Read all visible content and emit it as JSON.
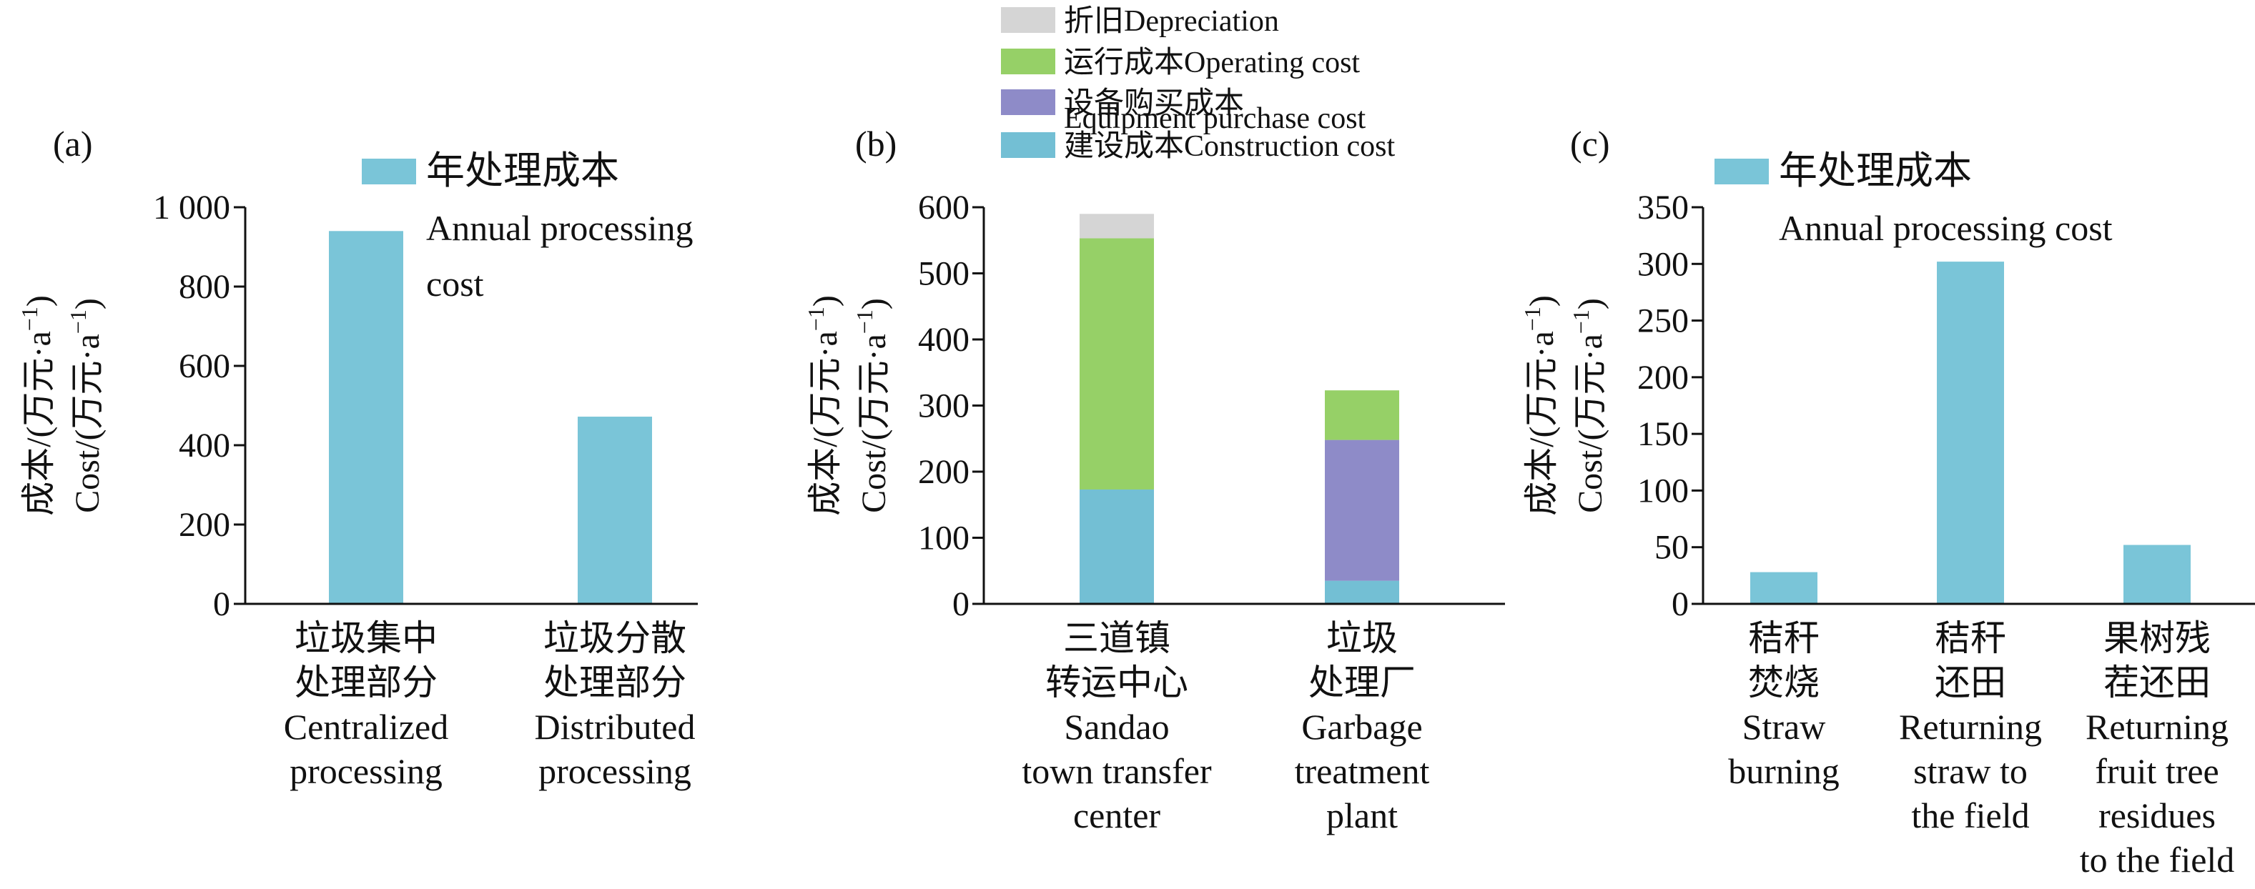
{
  "chart_data": [
    {
      "panel": "(a)",
      "type": "bar",
      "ylabel_cn": "成本/(万元·a",
      "ylabel_en": "Cost/(万元·a",
      "ylabel_sup": "−1",
      "ylabel_close": ")",
      "ylim": [
        0,
        1000
      ],
      "yticks": [
        0,
        200,
        400,
        600,
        800,
        1000
      ],
      "ytick_labels": [
        "0",
        "200",
        "400",
        "600",
        "800",
        "1 000"
      ],
      "categories": [
        [
          "垃圾集中",
          "处理部分",
          "Centralized",
          "processing"
        ],
        [
          "垃圾分散",
          "处理部分",
          "Distributed",
          "processing"
        ]
      ],
      "legend": [
        {
          "lines": [
            "年处理成本",
            "Annual processing",
            "cost"
          ],
          "color": "#7ac5d8"
        }
      ],
      "series": [
        {
          "name": "年处理成本 Annual processing cost",
          "values": [
            940,
            472
          ],
          "color": "#7ac5d8"
        }
      ]
    },
    {
      "panel": "(b)",
      "type": "bar",
      "stacked": true,
      "ylabel_cn": "成本/(万元·a",
      "ylabel_en": "Cost/(万元·a",
      "ylabel_sup": "−1",
      "ylabel_close": ")",
      "ylim": [
        0,
        600
      ],
      "yticks": [
        0,
        100,
        200,
        300,
        400,
        500,
        600
      ],
      "ytick_labels": [
        "0",
        "100",
        "200",
        "300",
        "400",
        "500",
        "600"
      ],
      "categories": [
        [
          "三道镇",
          "转运中心",
          "Sandao",
          "town transfer",
          "center"
        ],
        [
          "垃圾",
          "处理厂",
          "Garbage",
          "treatment",
          "plant"
        ]
      ],
      "legend": [
        {
          "lines": [
            "折旧Depreciation"
          ],
          "color": "#d5d5d5"
        },
        {
          "lines": [
            "运行成本Operating cost"
          ],
          "color": "#96d067"
        },
        {
          "lines": [
            "设备购买成本",
            "Equipment purchase cost"
          ],
          "color": "#8e8bc8"
        },
        {
          "lines": [
            "建设成本Construction cost"
          ],
          "color": "#73bfd4"
        }
      ],
      "series": [
        {
          "name": "建设成本Construction cost",
          "values": [
            173,
            35
          ],
          "color": "#73bfd4"
        },
        {
          "name": "设备购买成本 Equipment purchase cost",
          "values": [
            0,
            213
          ],
          "color": "#8e8bc8"
        },
        {
          "name": "运行成本Operating cost",
          "values": [
            380,
            75
          ],
          "color": "#96d067"
        },
        {
          "name": "折旧Depreciation",
          "values": [
            37,
            0
          ],
          "color": "#d5d5d5"
        }
      ]
    },
    {
      "panel": "(c)",
      "type": "bar",
      "ylabel_cn": "成本/(万元·a",
      "ylabel_en": "Cost/(万元·a",
      "ylabel_sup": "−1",
      "ylabel_close": ")",
      "ylim": [
        0,
        350
      ],
      "yticks": [
        0,
        50,
        100,
        150,
        200,
        250,
        300,
        350
      ],
      "ytick_labels": [
        "0",
        "50",
        "100",
        "150",
        "200",
        "250",
        "300",
        "350"
      ],
      "categories": [
        [
          "秸秆",
          "焚烧",
          "Straw",
          "burning"
        ],
        [
          "秸秆",
          "还田",
          "Returning",
          "straw to",
          "the field"
        ],
        [
          "果树残",
          "茬还田",
          "Returning",
          "fruit tree",
          "residues",
          "to the field"
        ]
      ],
      "legend": [
        {
          "lines": [
            "年处理成本",
            "Annual processing cost"
          ],
          "color": "#7ac5d8"
        }
      ],
      "series": [
        {
          "name": "年处理成本 Annual processing cost",
          "values": [
            28,
            302,
            52
          ],
          "color": "#7ac5d8"
        }
      ]
    }
  ]
}
